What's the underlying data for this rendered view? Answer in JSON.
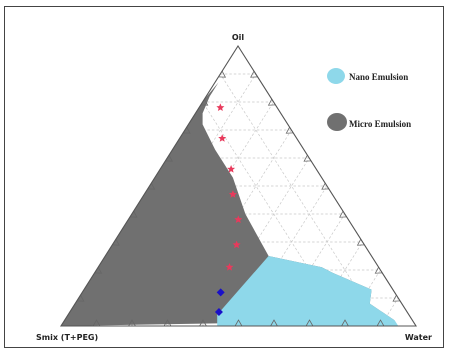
{
  "chart_data": {
    "type": "ternary",
    "vertices": {
      "top": "Oil",
      "left": "Smix (T+PEG)",
      "right": "Water"
    },
    "grid_step": 0.1,
    "legend": [
      {
        "name": "Nano Emulsion",
        "color": "#8ed8ea"
      },
      {
        "name": "Micro Emulsion",
        "color": "#707070"
      }
    ],
    "legend_position": "top-right",
    "regions": [
      {
        "name": "Micro Emulsion",
        "color": "#707070",
        "points": [
          {
            "oil": 0.02,
            "smix": 0.05,
            "water": 0.93
          },
          {
            "oil": 0.08,
            "smix": 0.09,
            "water": 0.83
          },
          {
            "oil": 0.13,
            "smix": 0.06,
            "water": 0.81
          },
          {
            "oil": 0.19,
            "smix": 0.14,
            "water": 0.67
          },
          {
            "oil": 0.21,
            "smix": 0.16,
            "water": 0.63
          },
          {
            "oil": 0.25,
            "smix": 0.29,
            "water": 0.46
          },
          {
            "oil": 0.4,
            "smix": 0.28,
            "water": 0.32
          },
          {
            "oil": 0.53,
            "smix": 0.25,
            "water": 0.22
          },
          {
            "oil": 0.63,
            "smix": 0.25,
            "water": 0.12
          },
          {
            "oil": 0.72,
            "smix": 0.24,
            "water": 0.04
          },
          {
            "oil": 0.76,
            "smix": 0.22,
            "water": 0.02
          },
          {
            "oil": 0.82,
            "smix": 0.17,
            "water": 0.01
          },
          {
            "oil": 0.85,
            "smix": 0.14,
            "water": 0.01
          },
          {
            "oil": 0.87,
            "smix": 0.12,
            "water": 0.01
          },
          {
            "oil": 0.81,
            "smix": 0.19,
            "water": 0.0
          },
          {
            "oil": 0.0,
            "smix": 1.0,
            "water": 0.0
          }
        ]
      },
      {
        "name": "Nano Emulsion",
        "color": "#8ed8ea",
        "points": [
          {
            "oil": 0.0,
            "smix": 0.05,
            "water": 0.95
          },
          {
            "oil": 0.02,
            "smix": 0.05,
            "water": 0.93
          },
          {
            "oil": 0.08,
            "smix": 0.09,
            "water": 0.83
          },
          {
            "oil": 0.13,
            "smix": 0.06,
            "water": 0.81
          },
          {
            "oil": 0.19,
            "smix": 0.14,
            "water": 0.67
          },
          {
            "oil": 0.21,
            "smix": 0.16,
            "water": 0.63
          },
          {
            "oil": 0.25,
            "smix": 0.29,
            "water": 0.46
          },
          {
            "oil": 0.04,
            "smix": 0.54,
            "water": 0.42
          },
          {
            "oil": 0.0,
            "smix": 0.56,
            "water": 0.44
          }
        ]
      }
    ],
    "boundary_stars": {
      "color": "#e83a5c",
      "points": [
        {
          "oil": 0.78,
          "smix": 0.16
        },
        {
          "oil": 0.67,
          "smix": 0.21
        },
        {
          "oil": 0.56,
          "smix": 0.24
        },
        {
          "oil": 0.47,
          "smix": 0.28
        },
        {
          "oil": 0.38,
          "smix": 0.31
        },
        {
          "oil": 0.29,
          "smix": 0.36
        },
        {
          "oil": 0.21,
          "smix": 0.42
        }
      ]
    },
    "boundary_dots": {
      "color": "#1a10c8",
      "points": [
        {
          "oil": 0.12,
          "smix": 0.49
        },
        {
          "oil": 0.05,
          "smix": 0.53
        }
      ]
    }
  }
}
